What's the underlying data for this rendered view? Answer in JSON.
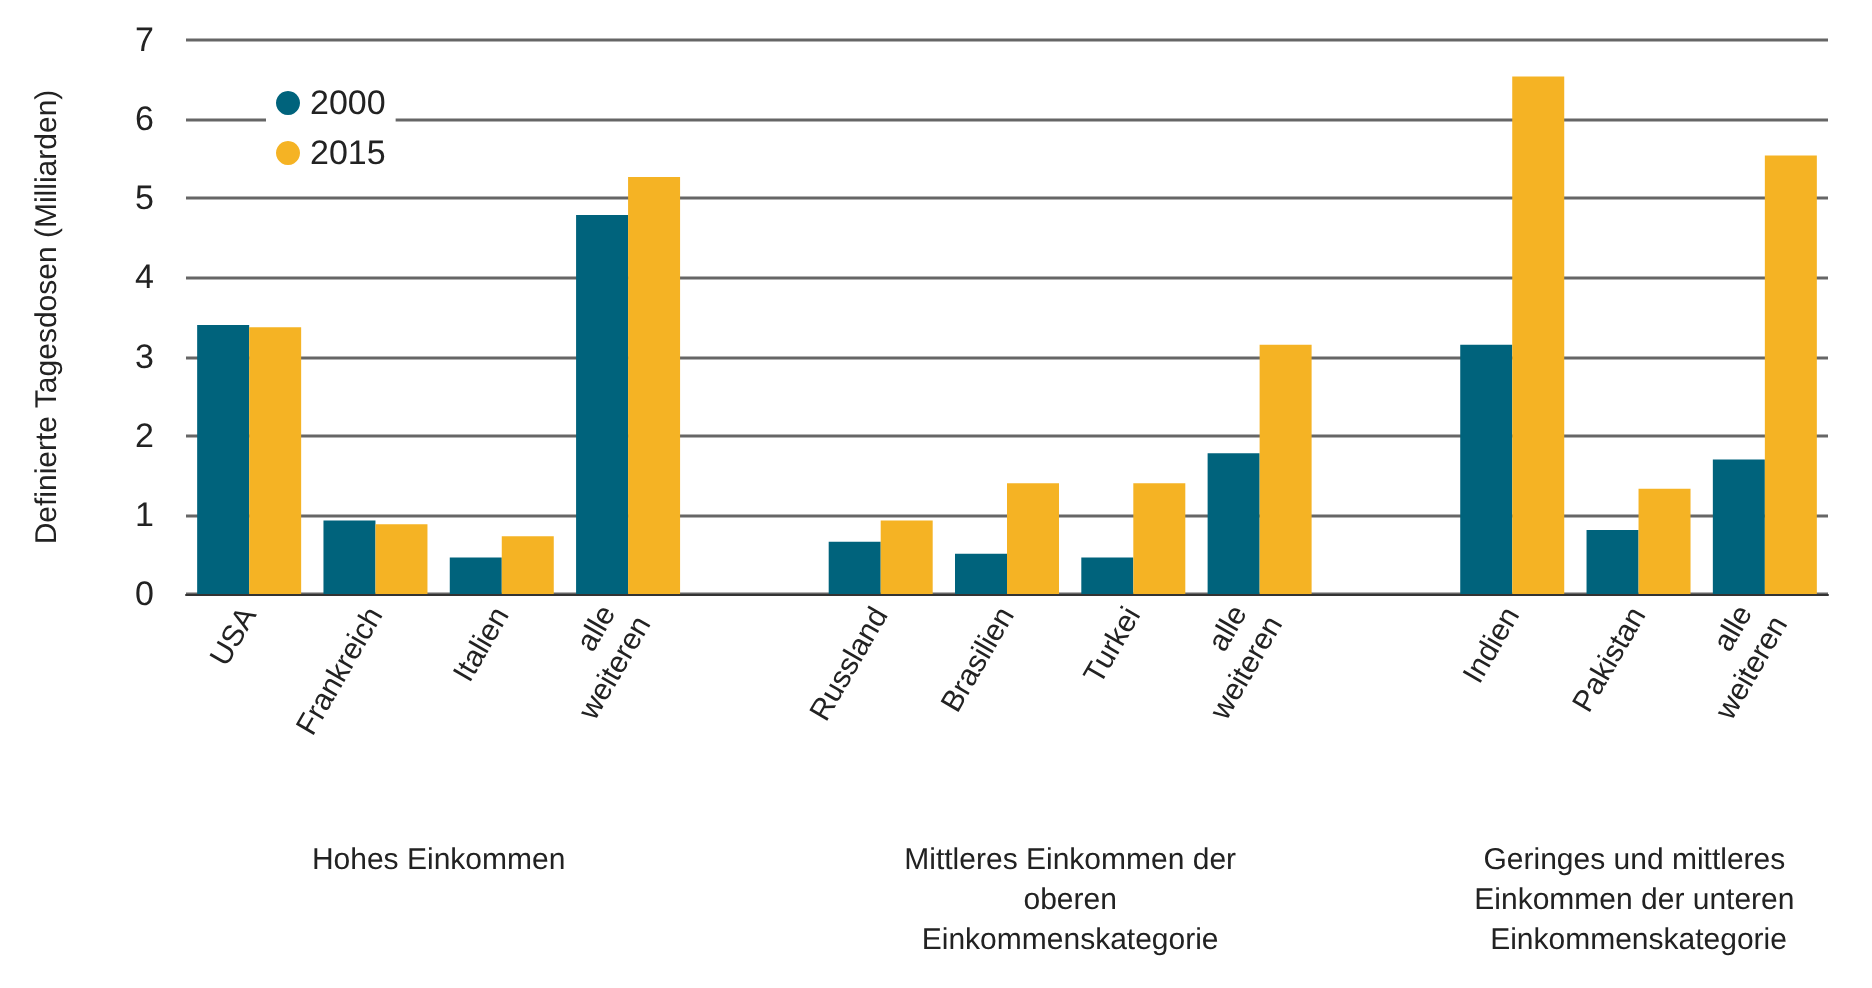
{
  "chart_data": {
    "type": "bar",
    "ylabel": "Definierte Tagesdosen (Milliarden)",
    "categories": [
      "USA",
      "Frankreich",
      "Italien",
      "alle weiteren",
      null,
      "Russland",
      "Brasilien",
      "Turkei",
      "alle weiteren",
      null,
      "Indien",
      "Pakistan",
      "alle weiteren"
    ],
    "series": [
      {
        "name": "2000",
        "color": "#00637c",
        "values": [
          3.4,
          0.93,
          0.46,
          4.79,
          null,
          0.66,
          0.51,
          0.46,
          1.78,
          null,
          3.15,
          0.81,
          1.7
        ]
      },
      {
        "name": "2015",
        "color": "#f5b324",
        "values": [
          3.37,
          0.88,
          0.73,
          5.27,
          null,
          0.93,
          1.4,
          1.4,
          3.15,
          null,
          6.54,
          1.33,
          5.54
        ]
      }
    ],
    "ylim": [
      0,
      7
    ],
    "yticks": [
      0,
      1,
      2,
      3,
      4,
      5,
      6,
      7
    ],
    "grid": "y",
    "legend": "top left",
    "marker": "circle",
    "annotations": [
      "Hohes Einkommen",
      "Mittleres Einkommen der oberen Einkommenskategorie",
      "Geringes und mittleres Einkommen der unteren Einkommenskategorie"
    ]
  }
}
